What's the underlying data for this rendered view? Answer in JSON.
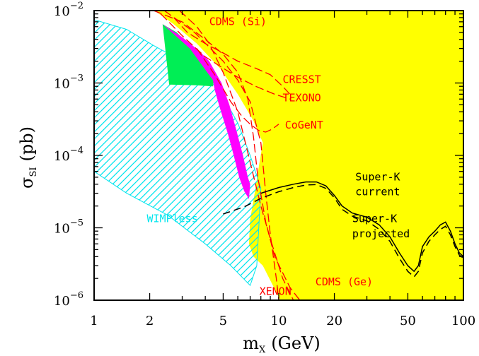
{
  "chart_data": {
    "type": "area",
    "x_scale": "log",
    "y_scale": "log",
    "xlim": [
      1,
      100
    ],
    "ylim": [
      1e-06,
      0.01
    ],
    "xlabel": {
      "base": "m",
      "sub": "X",
      "rest": "(GeV)"
    },
    "ylabel": {
      "base": "σ",
      "sub": "SI",
      "rest": "(pb)"
    },
    "x_ticks": [
      {
        "value": 1,
        "label": "1"
      },
      {
        "value": 2,
        "label": "2"
      },
      {
        "value": 5,
        "label": "5"
      },
      {
        "value": 10,
        "label": "10"
      },
      {
        "value": 20,
        "label": "20"
      },
      {
        "value": 50,
        "label": "50"
      },
      {
        "value": 100,
        "label": "100"
      }
    ],
    "y_ticks": [
      {
        "value": 1e-06,
        "base": "10",
        "exp": "−6"
      },
      {
        "value": 1e-05,
        "base": "10",
        "exp": "−5"
      },
      {
        "value": 0.0001,
        "base": "10",
        "exp": "−4"
      },
      {
        "value": 0.001,
        "base": "10",
        "exp": "−3"
      },
      {
        "value": 0.01,
        "base": "10",
        "exp": "−2"
      }
    ],
    "colors": {
      "excluded": "#ffff00",
      "wimpless": "#00e5ee",
      "dama_green": "#00ee55",
      "dama_magenta": "#ff00ff",
      "experiments": "#ff0000",
      "superk": "#000000"
    },
    "regions": [
      {
        "id": "excluded",
        "points": [
          [
            2.12,
            0.01
          ],
          [
            100,
            0.01
          ],
          [
            100,
            1e-06
          ],
          [
            10.2,
            1e-06
          ],
          [
            8.2,
            3e-06
          ],
          [
            7.3,
            4e-06
          ],
          [
            6.9,
            6e-06
          ],
          [
            7.0,
            1.3e-05
          ],
          [
            7.4,
            3e-05
          ],
          [
            7.8,
            7e-05
          ],
          [
            8.2,
            0.00015
          ],
          [
            7.3,
            0.0003
          ],
          [
            6.0,
            0.0007
          ],
          [
            4.8,
            0.0016
          ],
          [
            3.6,
            0.0035
          ],
          [
            2.7,
            0.0065
          ]
        ]
      },
      {
        "id": "wimpless",
        "points": [
          [
            1,
            0.0075
          ],
          [
            1.5,
            0.0055
          ],
          [
            2.1,
            0.0033
          ],
          [
            3.0,
            0.002
          ],
          [
            4.0,
            0.0013
          ],
          [
            5.0,
            0.00065
          ],
          [
            6.0,
            0.00028
          ],
          [
            7.0,
            0.0001
          ],
          [
            8.0,
            3.5e-05
          ],
          [
            7.6,
            3e-06
          ],
          [
            7.0,
            1.6e-06
          ],
          [
            5.5,
            3e-06
          ],
          [
            4.0,
            6e-06
          ],
          [
            2.5,
            1.5e-05
          ],
          [
            1.5,
            3e-05
          ],
          [
            1,
            6e-05
          ]
        ]
      },
      {
        "id": "dama_green",
        "points": [
          [
            2.35,
            0.0065
          ],
          [
            2.8,
            0.005
          ],
          [
            3.3,
            0.0033
          ],
          [
            3.9,
            0.0021
          ],
          [
            4.5,
            0.0013
          ],
          [
            4.4,
            0.0009
          ],
          [
            3.6,
            0.00093
          ],
          [
            2.55,
            0.00095
          ]
        ]
      },
      {
        "id": "dama_magenta",
        "points": [
          [
            2.35,
            0.0065
          ],
          [
            3.0,
            0.0043
          ],
          [
            3.7,
            0.0028
          ],
          [
            4.2,
            0.002
          ],
          [
            4.9,
            0.001
          ],
          [
            5.4,
            0.0005
          ],
          [
            5.9,
            0.00022
          ],
          [
            6.4,
            0.0001
          ],
          [
            6.8,
            5e-05
          ],
          [
            7.0,
            4e-05
          ],
          [
            6.9,
            2.5e-05
          ],
          [
            6.5,
            3.2e-05
          ],
          [
            6.1,
            5e-05
          ],
          [
            5.7,
            0.0001
          ],
          [
            5.3,
            0.0002
          ],
          [
            4.8,
            0.00045
          ],
          [
            4.5,
            0.0008
          ],
          [
            4.4,
            0.0011
          ],
          [
            4.1,
            0.0014
          ],
          [
            3.3,
            0.003
          ]
        ]
      }
    ],
    "curves": [
      {
        "id": "cdms-si",
        "label": "CDMS (Si)",
        "points": [
          [
            2.9,
            0.01
          ],
          [
            3.6,
            0.006
          ],
          [
            4.2,
            0.0035
          ],
          [
            5.0,
            0.0014
          ],
          [
            6.0,
            0.0004
          ],
          [
            7.0,
            8e-05
          ],
          [
            8.0,
            2e-05
          ],
          [
            9.0,
            7e-06
          ],
          [
            10.5,
            2e-06
          ],
          [
            12.0,
            1e-06
          ]
        ]
      },
      {
        "id": "cresst",
        "label": "CRESST",
        "points": [
          [
            2.7,
            0.008
          ],
          [
            3.2,
            0.005
          ],
          [
            4.0,
            0.0035
          ],
          [
            5.0,
            0.0026
          ],
          [
            6.0,
            0.002
          ],
          [
            7.5,
            0.0016
          ],
          [
            9.0,
            0.0013
          ],
          [
            10.5,
            0.0009
          ],
          [
            11.5,
            0.0007
          ]
        ]
      },
      {
        "id": "texono",
        "label": "TEXONO",
        "points": [
          [
            2.3,
            0.009
          ],
          [
            3.0,
            0.0045
          ],
          [
            4.0,
            0.0023
          ],
          [
            5.0,
            0.0016
          ],
          [
            6.0,
            0.0012
          ],
          [
            7.5,
            0.0009
          ],
          [
            9.5,
            0.0007
          ],
          [
            11.5,
            0.0006
          ]
        ]
      },
      {
        "id": "cogent",
        "label": "CoGeNT",
        "points": [
          [
            3.6,
            0.003
          ],
          [
            4.5,
            0.0013
          ],
          [
            5.5,
            0.00055
          ],
          [
            6.3,
            0.00035
          ],
          [
            7.0,
            0.00027
          ],
          [
            7.8,
            0.00022
          ],
          [
            8.5,
            0.00021
          ],
          [
            9.2,
            0.00023
          ],
          [
            10.0,
            0.00027
          ]
        ]
      },
      {
        "id": "xenon",
        "label": "XENON",
        "points": [
          [
            2.4,
            0.01
          ],
          [
            3.5,
            0.005
          ],
          [
            5.0,
            0.002
          ],
          [
            6.0,
            0.0011
          ],
          [
            7.0,
            0.00055
          ],
          [
            8.0,
            0.00015
          ],
          [
            8.5,
            3e-05
          ],
          [
            9.0,
            8e-06
          ],
          [
            9.7,
            2e-06
          ],
          [
            10.0,
            1e-06
          ]
        ]
      },
      {
        "id": "cdms-ge",
        "label": "CDMS (Ge)",
        "points": [
          [
            2.1,
            0.01
          ],
          [
            3.0,
            0.007
          ],
          [
            4.0,
            0.004
          ],
          [
            5.0,
            0.0025
          ],
          [
            6.0,
            0.0014
          ],
          [
            6.8,
            0.0006
          ],
          [
            7.3,
            0.00018
          ],
          [
            7.7,
            5e-05
          ],
          [
            8.5,
            1.2e-05
          ],
          [
            9.5,
            4e-06
          ],
          [
            11.5,
            1.5e-06
          ],
          [
            13.0,
            1e-06
          ]
        ]
      },
      {
        "id": "superk-current",
        "label": "Super-K current",
        "points": [
          [
            8.0,
            3e-05
          ],
          [
            10.0,
            3.6e-05
          ],
          [
            12.0,
            4e-05
          ],
          [
            14.0,
            4.3e-05
          ],
          [
            16.0,
            4.3e-05
          ],
          [
            18.0,
            3.8e-05
          ],
          [
            20.0,
            2.8e-05
          ],
          [
            22.0,
            2e-05
          ],
          [
            25.0,
            1.6e-05
          ],
          [
            30.0,
            1.4e-05
          ],
          [
            35.0,
            1.1e-05
          ],
          [
            40.0,
            7.5e-06
          ],
          [
            45.0,
            4.5e-06
          ],
          [
            50.0,
            3e-06
          ],
          [
            54.0,
            2.5e-06
          ],
          [
            57.0,
            3e-06
          ],
          [
            60.0,
            5.5e-06
          ],
          [
            65.0,
            7.5e-06
          ],
          [
            70.0,
            9e-06
          ],
          [
            75.0,
            1.1e-05
          ],
          [
            80.0,
            1.2e-05
          ],
          [
            85.0,
            9e-06
          ],
          [
            90.0,
            6e-06
          ],
          [
            95.0,
            4.5e-06
          ],
          [
            100.0,
            4e-06
          ]
        ]
      },
      {
        "id": "superk-projected",
        "label": "Super-K projected",
        "points": [
          [
            5.0,
            1.55e-05
          ],
          [
            6.5,
            1.95e-05
          ],
          [
            8.0,
            2.55e-05
          ],
          [
            10.0,
            3.15e-05
          ],
          [
            12.0,
            3.6e-05
          ],
          [
            14.0,
            3.9e-05
          ],
          [
            16.0,
            3.95e-05
          ],
          [
            18.0,
            3.5e-05
          ],
          [
            20.0,
            2.6e-05
          ],
          [
            22.0,
            1.8e-05
          ],
          [
            25.0,
            1.45e-05
          ],
          [
            30.0,
            1.25e-05
          ],
          [
            35.0,
            9.5e-06
          ],
          [
            40.0,
            6.5e-06
          ],
          [
            45.0,
            3.8e-06
          ],
          [
            50.0,
            2.5e-06
          ],
          [
            54.0,
            2.1e-06
          ],
          [
            57.0,
            2.5e-06
          ],
          [
            60.0,
            4.5e-06
          ],
          [
            65.0,
            6.5e-06
          ],
          [
            70.0,
            8e-06
          ],
          [
            75.0,
            9.5e-06
          ],
          [
            80.0,
            1.05e-05
          ],
          [
            85.0,
            8e-06
          ],
          [
            90.0,
            5.5e-06
          ],
          [
            95.0,
            4.2e-06
          ],
          [
            100.0,
            3.8e-06
          ]
        ]
      }
    ],
    "annotations": [
      {
        "id": "cdms-si",
        "text": "CDMS (Si)",
        "x": 4.2,
        "y": 0.0063
      },
      {
        "id": "cresst",
        "text": "CRESST",
        "x": 10.5,
        "y": 0.001
      },
      {
        "id": "texono",
        "text": "TEXONO",
        "x": 10.5,
        "y": 0.00056
      },
      {
        "id": "cogent",
        "text": "CoGeNT",
        "x": 10.8,
        "y": 0.000235
      },
      {
        "id": "superk-current-1",
        "text": "Super-K",
        "x": 26,
        "y": 4.5e-05
      },
      {
        "id": "superk-current-2",
        "text": "current",
        "x": 26,
        "y": 2.8e-05
      },
      {
        "id": "superk-projected-1",
        "text": "Super-K",
        "x": 25,
        "y": 1.2e-05
      },
      {
        "id": "superk-projected-2",
        "text": "projected",
        "x": 25,
        "y": 7.4e-06
      },
      {
        "id": "wimpless",
        "text": "WIMPless",
        "x": 1.93,
        "y": 1.2e-05
      },
      {
        "id": "xenon",
        "text": "XENON",
        "x": 7.85,
        "y": 1.18e-06
      },
      {
        "id": "cdms-ge",
        "text": "CDMS (Ge)",
        "x": 15.8,
        "y": 1.6e-06
      }
    ]
  }
}
